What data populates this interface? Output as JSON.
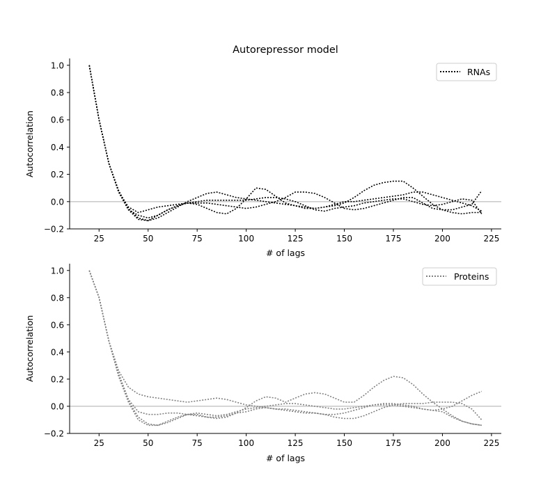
{
  "chart_data": [
    {
      "type": "line",
      "title": "Autorepressor model",
      "xlabel": "# of lags",
      "ylabel": "Autocorrelation",
      "xlim": [
        10,
        230
      ],
      "ylim": [
        -0.2,
        1.05
      ],
      "xticks": [
        25,
        50,
        75,
        100,
        125,
        150,
        175,
        200,
        225
      ],
      "yticks": [
        -0.2,
        0.0,
        0.2,
        0.4,
        0.6,
        0.8,
        1.0
      ],
      "xtick_labels": [
        "25",
        "50",
        "75",
        "100",
        "125",
        "150",
        "175",
        "200",
        "225"
      ],
      "ytick_labels": [
        "−0.2",
        "0.0",
        "0.2",
        "0.4",
        "0.6",
        "0.8",
        "1.0"
      ],
      "legend": {
        "label": "RNAs",
        "placement": "top-right"
      },
      "reference_line": {
        "y": 0,
        "color": "#cccccc"
      },
      "line_color": "#000000",
      "line_style": "dotted",
      "series": [
        {
          "x": [
            20,
            25,
            30,
            35,
            40,
            45,
            50,
            55,
            60,
            65,
            70,
            75,
            80,
            85,
            90,
            95,
            100,
            105,
            110,
            115,
            120,
            125,
            130,
            135,
            140,
            145,
            150,
            155,
            160,
            165,
            170,
            175,
            180,
            185,
            190,
            195,
            200,
            205,
            210,
            215,
            220
          ],
          "values": [
            1.0,
            0.6,
            0.28,
            0.08,
            -0.05,
            -0.12,
            -0.14,
            -0.12,
            -0.08,
            -0.04,
            0.0,
            0.03,
            0.06,
            0.07,
            0.05,
            0.03,
            0.02,
            0.01,
            0.0,
            -0.01,
            -0.02,
            -0.03,
            -0.04,
            -0.05,
            -0.04,
            -0.03,
            -0.01,
            0.03,
            0.08,
            0.12,
            0.14,
            0.15,
            0.15,
            0.1,
            0.04,
            -0.02,
            -0.06,
            -0.08,
            -0.09,
            -0.08,
            -0.08
          ]
        },
        {
          "x": [
            20,
            25,
            30,
            35,
            40,
            45,
            50,
            55,
            60,
            65,
            70,
            75,
            80,
            85,
            90,
            95,
            100,
            105,
            110,
            115,
            120,
            125,
            130,
            135,
            140,
            145,
            150,
            155,
            160,
            165,
            170,
            175,
            180,
            185,
            190,
            195,
            200,
            205,
            210,
            215,
            220
          ],
          "values": [
            1.0,
            0.6,
            0.28,
            0.07,
            -0.06,
            -0.1,
            -0.12,
            -0.1,
            -0.06,
            -0.03,
            -0.01,
            -0.02,
            -0.05,
            -0.08,
            -0.09,
            -0.05,
            0.02,
            0.1,
            0.09,
            0.04,
            -0.01,
            -0.03,
            -0.05,
            -0.05,
            -0.04,
            -0.02,
            0.0,
            0.0,
            0.01,
            0.02,
            0.03,
            0.04,
            0.05,
            0.07,
            0.07,
            0.05,
            0.03,
            0.01,
            -0.01,
            -0.03,
            -0.07
          ]
        },
        {
          "x": [
            20,
            25,
            30,
            35,
            40,
            45,
            50,
            55,
            60,
            65,
            70,
            75,
            80,
            85,
            90,
            95,
            100,
            105,
            110,
            115,
            120,
            125,
            130,
            135,
            140,
            145,
            150,
            155,
            160,
            165,
            170,
            175,
            180,
            185,
            190,
            195,
            200,
            205,
            210,
            215,
            220
          ],
          "values": [
            1.0,
            0.6,
            0.28,
            0.07,
            -0.04,
            -0.08,
            -0.06,
            -0.04,
            -0.03,
            -0.02,
            -0.01,
            -0.01,
            -0.01,
            -0.02,
            -0.03,
            -0.04,
            -0.05,
            -0.04,
            -0.02,
            0.0,
            0.03,
            0.07,
            0.07,
            0.06,
            0.03,
            -0.01,
            -0.05,
            -0.06,
            -0.05,
            -0.03,
            -0.01,
            0.01,
            0.03,
            0.03,
            -0.01,
            -0.05,
            -0.06,
            -0.06,
            -0.04,
            -0.02,
            0.08
          ]
        },
        {
          "x": [
            20,
            25,
            30,
            35,
            40,
            45,
            50,
            55,
            60,
            65,
            70,
            75,
            80,
            85,
            90,
            95,
            100,
            105,
            110,
            115,
            120,
            125,
            130,
            135,
            140,
            145,
            150,
            155,
            160,
            165,
            170,
            175,
            180,
            185,
            190,
            195,
            200,
            205,
            210,
            215,
            220
          ],
          "values": [
            1.0,
            0.6,
            0.28,
            0.07,
            -0.06,
            -0.13,
            -0.14,
            -0.1,
            -0.06,
            -0.03,
            -0.01,
            0.0,
            0.01,
            0.01,
            0.01,
            0.01,
            0.01,
            0.02,
            0.03,
            0.03,
            0.02,
            0.0,
            -0.03,
            -0.06,
            -0.07,
            -0.05,
            -0.04,
            -0.03,
            -0.01,
            0.0,
            0.01,
            0.02,
            0.02,
            0.0,
            -0.02,
            -0.03,
            -0.02,
            0.0,
            0.02,
            0.01,
            -0.09
          ]
        }
      ]
    },
    {
      "type": "line",
      "title": "",
      "xlabel": "# of lags",
      "ylabel": "Autocorrelation",
      "xlim": [
        10,
        230
      ],
      "ylim": [
        -0.2,
        1.05
      ],
      "xticks": [
        25,
        50,
        75,
        100,
        125,
        150,
        175,
        200,
        225
      ],
      "yticks": [
        -0.2,
        0.0,
        0.2,
        0.4,
        0.6,
        0.8,
        1.0
      ],
      "xtick_labels": [
        "25",
        "50",
        "75",
        "100",
        "125",
        "150",
        "175",
        "200",
        "225"
      ],
      "ytick_labels": [
        "−0.2",
        "0.0",
        "0.2",
        "0.4",
        "0.6",
        "0.8",
        "1.0"
      ],
      "legend": {
        "label": "Proteins",
        "placement": "top-right"
      },
      "reference_line": {
        "y": 0,
        "color": "#cccccc"
      },
      "line_color": "#808080",
      "line_style": "dotted",
      "series": [
        {
          "x": [
            20,
            25,
            30,
            35,
            40,
            45,
            50,
            55,
            60,
            65,
            70,
            75,
            80,
            85,
            90,
            95,
            100,
            105,
            110,
            115,
            120,
            125,
            130,
            135,
            140,
            145,
            150,
            155,
            160,
            165,
            170,
            175,
            180,
            185,
            190,
            195,
            200,
            205,
            210,
            215,
            220
          ],
          "values": [
            1.0,
            0.8,
            0.48,
            0.26,
            0.14,
            0.09,
            0.07,
            0.06,
            0.05,
            0.04,
            0.03,
            0.04,
            0.05,
            0.06,
            0.05,
            0.03,
            0.01,
            0.0,
            -0.01,
            -0.02,
            -0.02,
            -0.03,
            -0.04,
            -0.05,
            -0.06,
            -0.06,
            -0.05,
            -0.03,
            -0.01,
            0.01,
            0.02,
            0.02,
            0.01,
            0.0,
            -0.02,
            -0.03,
            -0.02,
            0.0,
            0.04,
            0.08,
            0.11
          ]
        },
        {
          "x": [
            20,
            25,
            30,
            35,
            40,
            45,
            50,
            55,
            60,
            65,
            70,
            75,
            80,
            85,
            90,
            95,
            100,
            105,
            110,
            115,
            120,
            125,
            130,
            135,
            140,
            145,
            150,
            155,
            160,
            165,
            170,
            175,
            180,
            185,
            190,
            195,
            200,
            205,
            210,
            215,
            220
          ],
          "values": [
            1.0,
            0.8,
            0.48,
            0.24,
            0.05,
            -0.04,
            -0.06,
            -0.06,
            -0.05,
            -0.05,
            -0.06,
            -0.07,
            -0.08,
            -0.08,
            -0.07,
            -0.05,
            -0.04,
            -0.02,
            -0.01,
            -0.02,
            -0.03,
            -0.04,
            -0.05,
            -0.05,
            -0.06,
            -0.08,
            -0.09,
            -0.09,
            -0.07,
            -0.04,
            -0.01,
            0.01,
            0.02,
            0.02,
            0.02,
            0.03,
            0.03,
            0.03,
            0.02,
            -0.02,
            -0.1
          ]
        },
        {
          "x": [
            20,
            25,
            30,
            35,
            40,
            45,
            50,
            55,
            60,
            65,
            70,
            75,
            80,
            85,
            90,
            95,
            100,
            105,
            110,
            115,
            120,
            125,
            130,
            135,
            140,
            145,
            150,
            155,
            160,
            165,
            170,
            175,
            180,
            185,
            190,
            195,
            200,
            205,
            210,
            215,
            220
          ],
          "values": [
            1.0,
            0.8,
            0.48,
            0.22,
            0.04,
            -0.08,
            -0.13,
            -0.14,
            -0.12,
            -0.09,
            -0.06,
            -0.05,
            -0.06,
            -0.07,
            -0.06,
            -0.04,
            -0.02,
            -0.01,
            0.0,
            0.01,
            0.02,
            0.02,
            0.01,
            0.0,
            -0.01,
            -0.02,
            -0.02,
            -0.01,
            0.0,
            0.01,
            0.01,
            0.01,
            0.0,
            -0.01,
            -0.02,
            -0.03,
            -0.04,
            -0.08,
            -0.11,
            -0.13,
            -0.14
          ]
        },
        {
          "x": [
            20,
            25,
            30,
            35,
            40,
            45,
            50,
            55,
            60,
            65,
            70,
            75,
            80,
            85,
            90,
            95,
            100,
            105,
            110,
            115,
            120,
            125,
            130,
            135,
            140,
            145,
            150,
            155,
            160,
            165,
            170,
            175,
            180,
            185,
            190,
            195,
            200,
            205,
            210,
            215,
            220
          ],
          "values": [
            1.0,
            0.8,
            0.48,
            0.22,
            0.03,
            -0.1,
            -0.14,
            -0.14,
            -0.11,
            -0.08,
            -0.06,
            -0.06,
            -0.08,
            -0.09,
            -0.08,
            -0.05,
            -0.01,
            0.04,
            0.07,
            0.06,
            0.03,
            0.06,
            0.09,
            0.1,
            0.09,
            0.06,
            0.03,
            0.03,
            0.08,
            0.14,
            0.19,
            0.22,
            0.21,
            0.16,
            0.09,
            0.03,
            -0.02,
            -0.07,
            -0.11,
            -0.13,
            -0.14
          ]
        }
      ]
    }
  ]
}
